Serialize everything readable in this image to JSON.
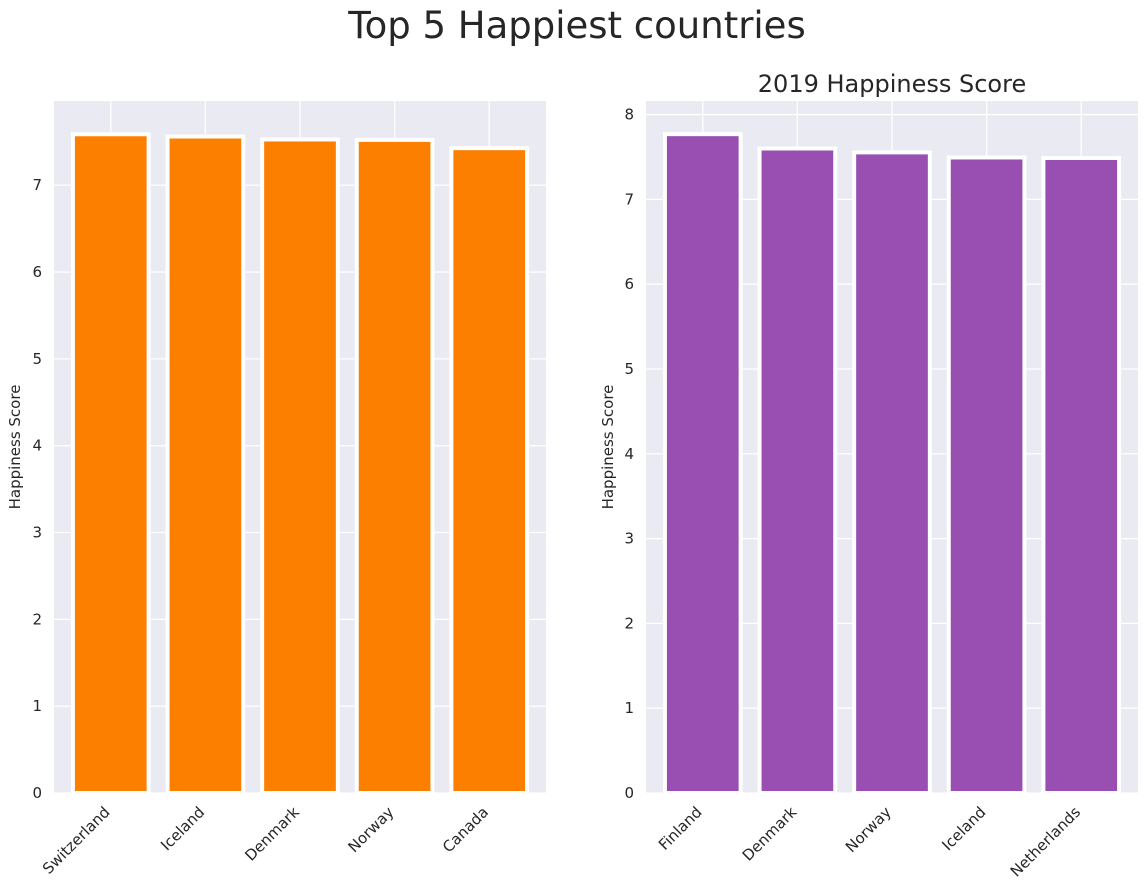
{
  "figure": {
    "suptitle": "Top 5 Happiest countries",
    "background": "#ffffff",
    "axes_face": "#eaeaf2",
    "grid_color": "#ffffff"
  },
  "chart_data": [
    {
      "type": "bar",
      "title": "",
      "xlabel": "",
      "ylabel": "Happiness Score",
      "categories": [
        "Switzerland",
        "Iceland",
        "Denmark",
        "Norway",
        "Canada"
      ],
      "values": [
        7.587,
        7.561,
        7.527,
        7.522,
        7.427
      ],
      "ylim": [
        0,
        7.97
      ],
      "yticks": [
        0,
        1,
        2,
        3,
        4,
        5,
        6,
        7
      ],
      "color": "#fc7f00",
      "edgecolor": "#ffffff",
      "grid": true
    },
    {
      "type": "bar",
      "title": "2019 Happiness Score",
      "xlabel": "",
      "ylabel": "Happiness Score",
      "categories": [
        "Finland",
        "Denmark",
        "Norway",
        "Iceland",
        "Netherlands"
      ],
      "values": [
        7.769,
        7.6,
        7.554,
        7.494,
        7.488
      ],
      "ylim": [
        0,
        8.16
      ],
      "yticks": [
        0,
        1,
        2,
        3,
        4,
        5,
        6,
        7,
        8
      ],
      "color": "#984fb1",
      "edgecolor": "#ffffff",
      "grid": true
    }
  ]
}
